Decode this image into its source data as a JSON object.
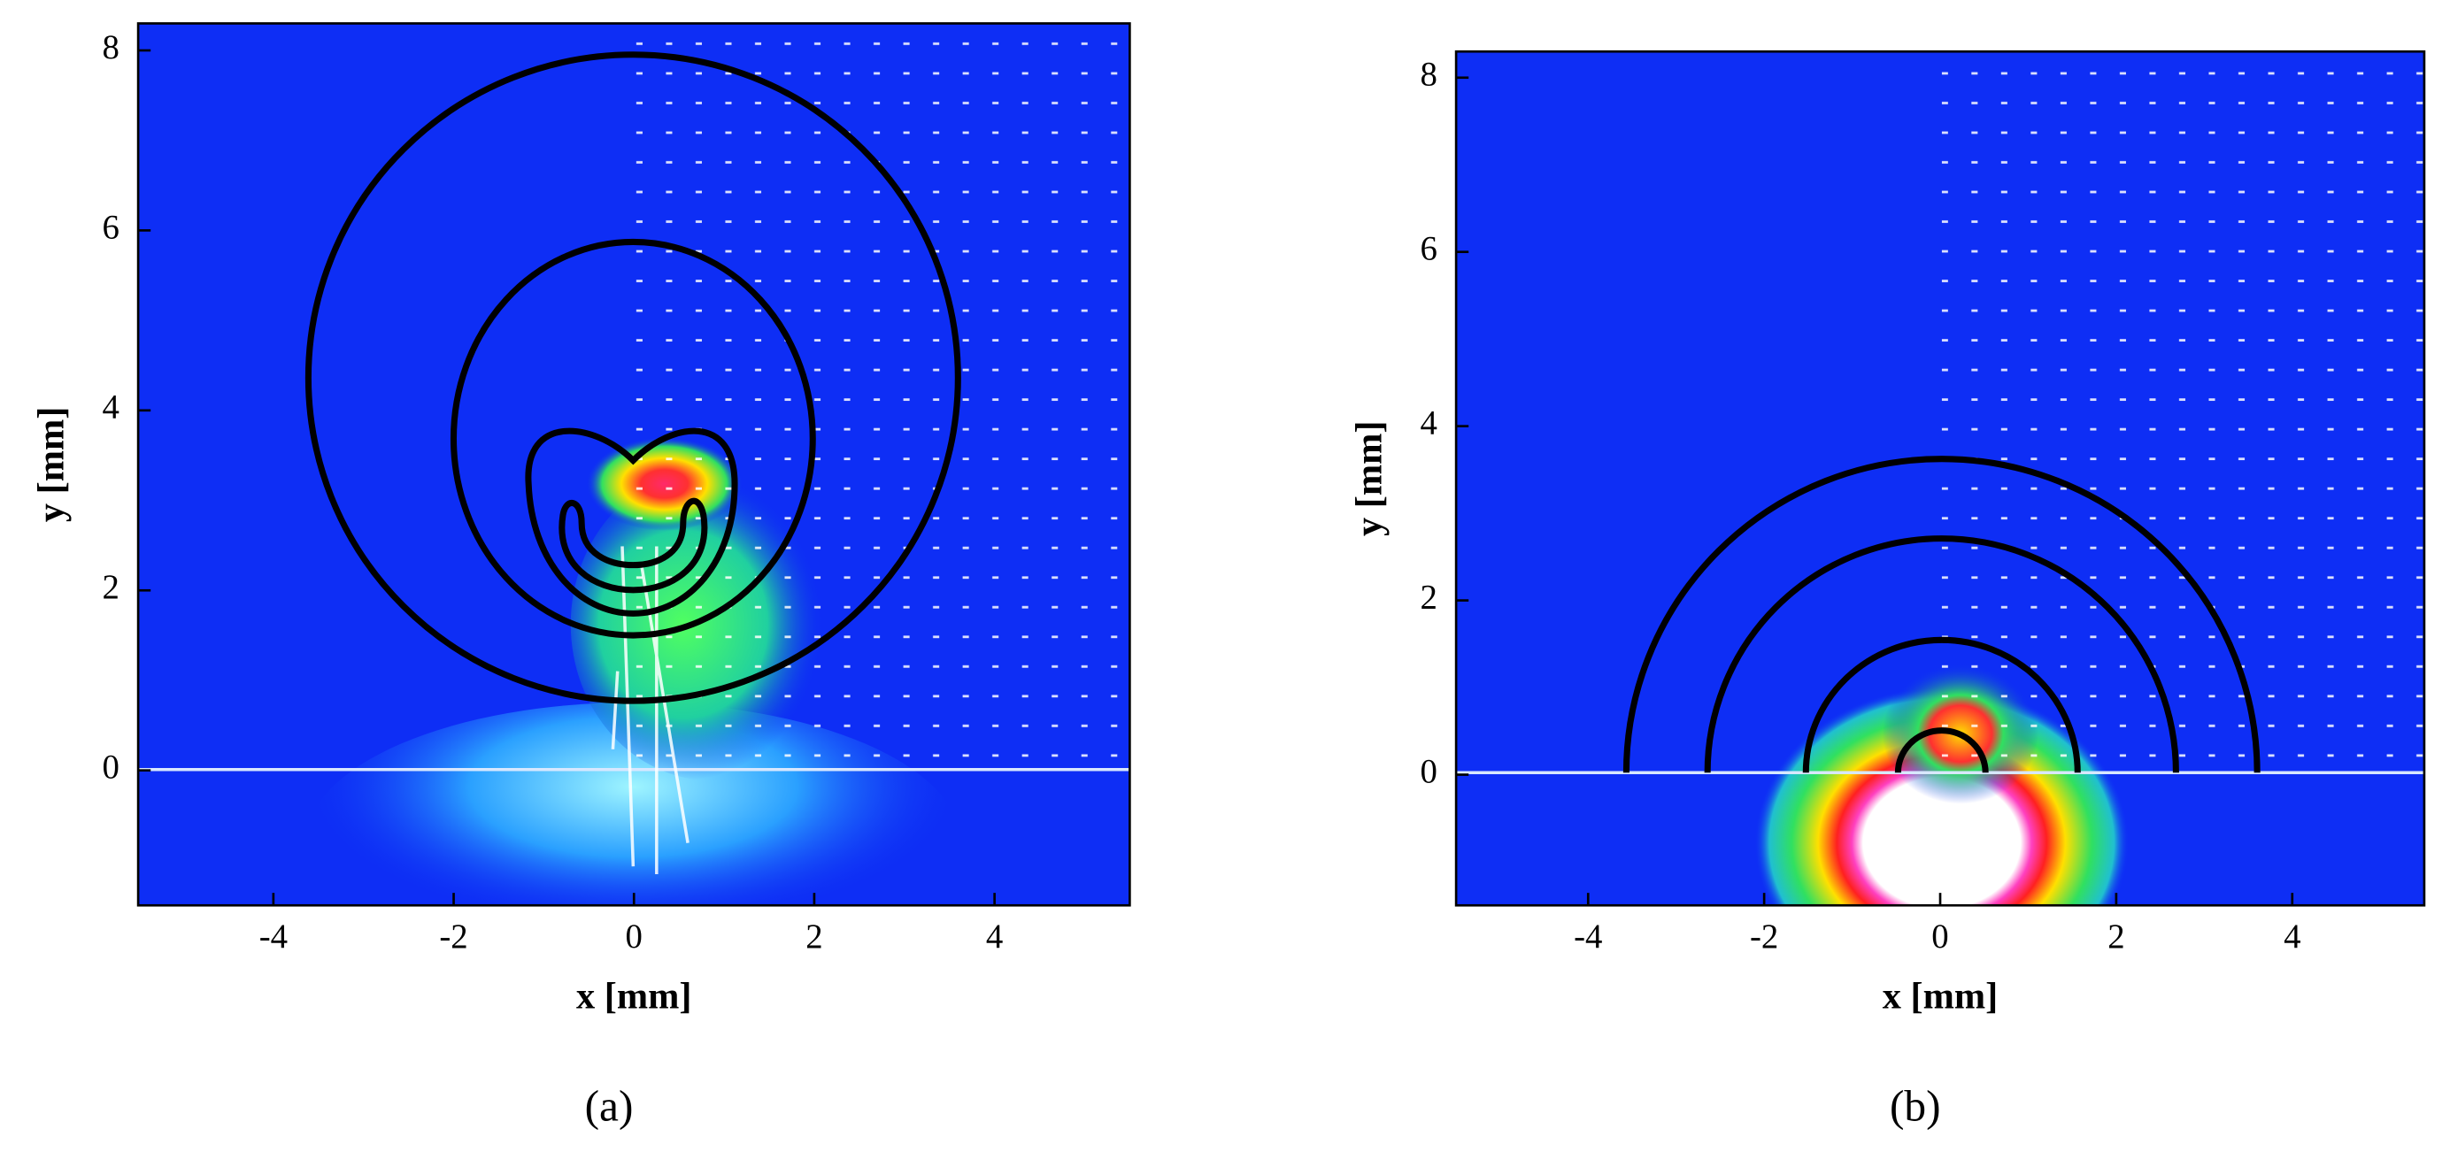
{
  "chart_data": [
    {
      "type": "contour",
      "label": "(a)",
      "xlabel": "x [mm]",
      "ylabel": "y [mm]",
      "xlim": [
        -5.5,
        5.5
      ],
      "ylim": [
        -1.5,
        8.3
      ],
      "xticks": [
        -4,
        -2,
        0,
        2,
        4
      ],
      "yticks": [
        0,
        2,
        4,
        6,
        8
      ]
    },
    {
      "type": "contour",
      "label": "(b)",
      "xlabel": "x [mm]",
      "ylabel": "y [mm]",
      "xlim": [
        -5.5,
        5.5
      ],
      "ylim": [
        -1.5,
        8.3
      ],
      "xticks": [
        -4,
        -2,
        0,
        2,
        4
      ],
      "yticks": [
        0,
        2,
        4,
        6,
        8
      ]
    }
  ]
}
